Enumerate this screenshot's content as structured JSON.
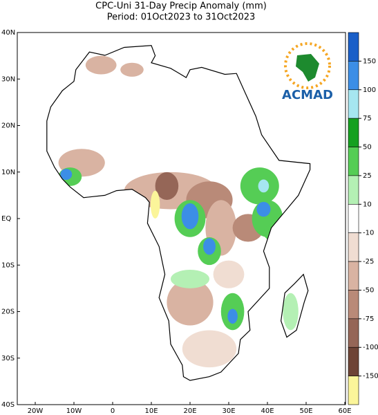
{
  "map": {
    "title": "CPC-Uni 31-Day Precip Anomaly (mm)",
    "subtitle": "Period: 01Oct2023 to 31Oct2023",
    "logo": "ACMAD",
    "lat_ticks": [
      "40N",
      "30N",
      "20N",
      "10N",
      "EQ",
      "10S",
      "20S",
      "30S",
      "40S"
    ],
    "lon_ticks": [
      "20W",
      "10W",
      "0",
      "10E",
      "20E",
      "30E",
      "40E",
      "50E",
      "60E"
    ],
    "colorbar": {
      "levels": [
        150,
        100,
        75,
        50,
        25,
        10,
        -10,
        -25,
        -50,
        -75,
        -100,
        -150
      ],
      "colors": [
        "#1a5fc8",
        "#3c8ee6",
        "#a6e6f0",
        "#15a020",
        "#55cd55",
        "#b4f0b4",
        "#ffffff",
        "#f0ddd2",
        "#d9b3a2",
        "#b98a78",
        "#956657",
        "#6e4436",
        "#fbf59a"
      ]
    }
  }
}
